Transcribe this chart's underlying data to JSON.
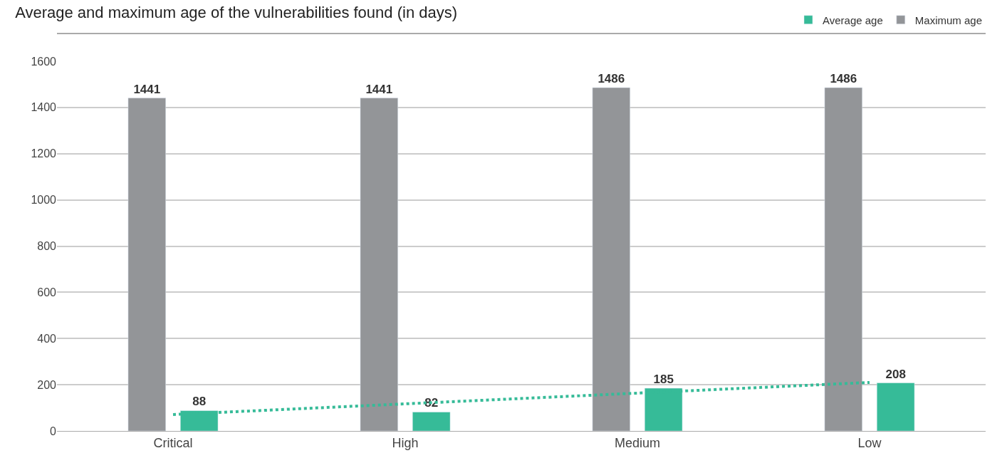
{
  "chart_data": {
    "type": "bar",
    "title": "Average and maximum age of the vulnerabilities found (in days)",
    "categories": [
      "Critical",
      "High",
      "Medium",
      "Low"
    ],
    "series": [
      {
        "name": "Maximum age",
        "color": "#939598",
        "values": [
          1441,
          1441,
          1486,
          1486
        ],
        "value_labels": [
          "1441",
          "1441",
          "1486",
          "1486"
        ]
      },
      {
        "name": "Average age",
        "color": "#36bb98",
        "values": [
          88,
          82,
          185,
          208
        ],
        "value_labels": [
          "88",
          "82",
          "185",
          "208"
        ]
      },
      {
        "type": "line",
        "color": "#36bb98",
        "x": [
          "Critical",
          "Low"
        ],
        "values": [
          71,
          210
        ],
        "line_style": "dotted",
        "marker": "none"
      }
    ],
    "ylim": [
      0,
      1600
    ],
    "yticks": [
      0,
      200,
      400,
      600,
      800,
      1000,
      1200,
      1400,
      1600
    ],
    "grid": "y",
    "legend": "top right"
  }
}
